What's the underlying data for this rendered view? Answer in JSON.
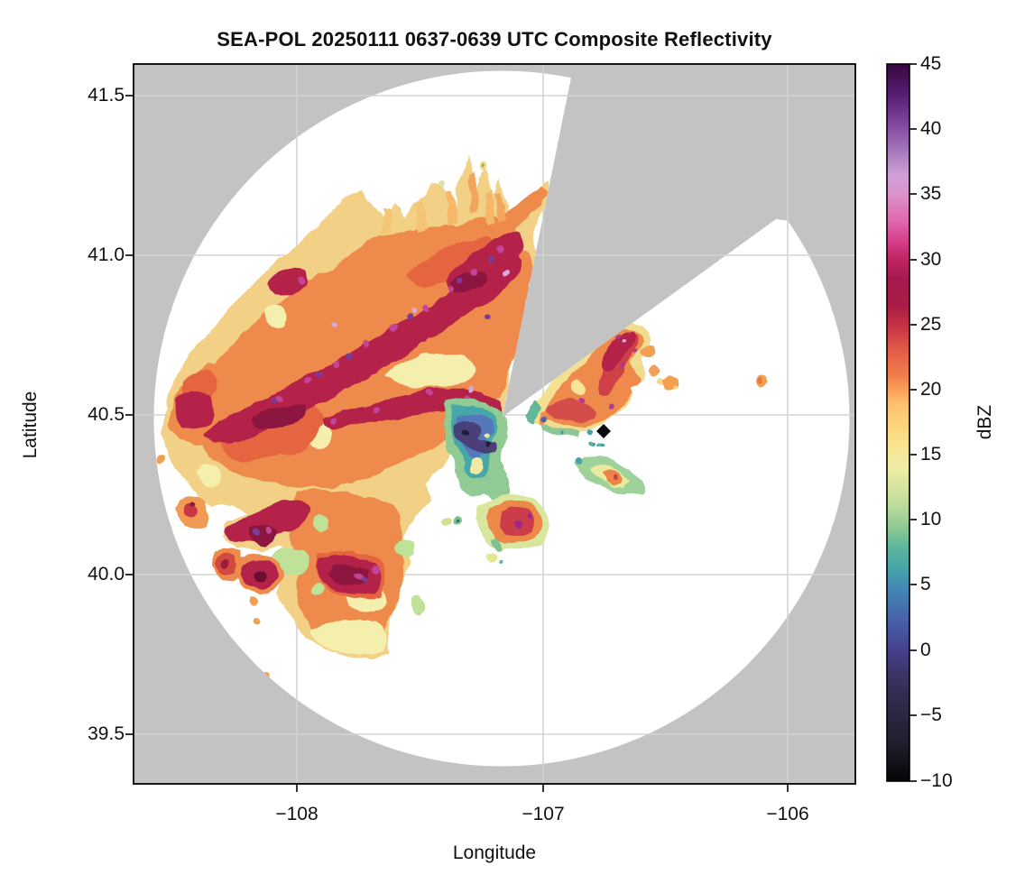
{
  "title": "SEA-POL 20250111 0637-0639 UTC Composite Reflectivity",
  "axes": {
    "xlabel": "Longitude",
    "ylabel": "Latitude",
    "x_ticks": [
      {
        "label": "−108",
        "value": -108
      },
      {
        "label": "−107",
        "value": -107
      },
      {
        "label": "−106",
        "value": -106
      }
    ],
    "y_ticks": [
      {
        "label": "41.5",
        "value": 41.5
      },
      {
        "label": "41.0",
        "value": 41.0
      },
      {
        "label": "40.5",
        "value": 40.5
      },
      {
        "label": "40.0",
        "value": 40.0
      },
      {
        "label": "39.5",
        "value": 39.5
      }
    ]
  },
  "colorbar": {
    "label": "dBZ",
    "min": -10,
    "max": 45,
    "tick_step": 5,
    "ticks": [
      {
        "label": "45",
        "value": 45
      },
      {
        "label": "40",
        "value": 40
      },
      {
        "label": "35",
        "value": 35
      },
      {
        "label": "30",
        "value": 30
      },
      {
        "label": "25",
        "value": 25
      },
      {
        "label": "20",
        "value": 20
      },
      {
        "label": "15",
        "value": 15
      },
      {
        "label": "10",
        "value": 10
      },
      {
        "label": "5",
        "value": 5
      },
      {
        "label": "0",
        "value": 0
      },
      {
        "label": "−5",
        "value": -5
      },
      {
        "label": "−10",
        "value": -10
      }
    ],
    "colormap_stops": [
      [
        45,
        "#36083e"
      ],
      [
        42.5,
        "#5a1f76"
      ],
      [
        40,
        "#8750a4"
      ],
      [
        38,
        "#ad7fc0"
      ],
      [
        36.5,
        "#cf9fd8"
      ],
      [
        35,
        "#da92ca"
      ],
      [
        33,
        "#e068ac"
      ],
      [
        31.5,
        "#d6418c"
      ],
      [
        30,
        "#c02462"
      ],
      [
        28.5,
        "#a51a50"
      ],
      [
        26.5,
        "#a81c45"
      ],
      [
        25,
        "#c63045"
      ],
      [
        23,
        "#e25c46"
      ],
      [
        21,
        "#f1814c"
      ],
      [
        20,
        "#f9a05a"
      ],
      [
        19,
        "#fcc06c"
      ],
      [
        17,
        "#fdd77f"
      ],
      [
        15.5,
        "#f7e695"
      ],
      [
        14,
        "#edeca6"
      ],
      [
        12.5,
        "#d6e59f"
      ],
      [
        11,
        "#b7da9a"
      ],
      [
        9.5,
        "#8fca93"
      ],
      [
        8,
        "#5fb69b"
      ],
      [
        6.5,
        "#49a7a7"
      ],
      [
        5,
        "#428cb4"
      ],
      [
        3.5,
        "#4573af"
      ],
      [
        2,
        "#485ba6"
      ],
      [
        0.5,
        "#464792"
      ],
      [
        0,
        "#444089"
      ],
      [
        -1.5,
        "#3d366c"
      ],
      [
        -3,
        "#352e55"
      ],
      [
        -5,
        "#2b2540"
      ],
      [
        -7,
        "#211e2e"
      ],
      [
        -8.5,
        "#15131a"
      ],
      [
        -10,
        "#030304"
      ]
    ]
  },
  "colors": {
    "background": "#ffffff",
    "no_data_gray": "#c3c3c3",
    "grid": "#d4d4d4",
    "axis": "#000000"
  },
  "chart_data": {
    "type": "heatmap",
    "title": "SEA-POL 20250111 0637-0639 UTC Composite Reflectivity",
    "xlabel": "Longitude",
    "ylabel": "Latitude",
    "xlim": [
      -108.67,
      -105.73
    ],
    "ylim": [
      39.42,
      41.59
    ],
    "x_ticks": [
      -108,
      -107,
      -106
    ],
    "y_ticks": [
      39.5,
      40.0,
      40.5,
      41.0,
      41.5
    ],
    "grid": true,
    "colorbar": {
      "label": "dBZ",
      "range": [
        -10,
        45
      ],
      "tick_step": 5
    },
    "radar": {
      "site": "SEA-POL",
      "date": "20250111",
      "time_utc": "0637-0639",
      "product": "Composite Reflectivity",
      "center_lonlat_approx": [
        -107.17,
        40.49
      ],
      "range_km_approx": 120,
      "blocked_sector_azimuth_deg_approx": [
        11,
        54
      ],
      "site_marker_lonlat_approx": [
        -106.74,
        40.45
      ]
    },
    "features": [
      {
        "name": "widespread stratiform echo W-NW of radar",
        "lon_range": [
          -108.57,
          -106.98
        ],
        "lat_range": [
          39.74,
          41.33
        ],
        "dbz_range": [
          15,
          38
        ],
        "structure": "WSW-ENE oriented embedded bands of 28-34 dBZ with isolated specks to 40 dBZ"
      },
      {
        "name": "weak-echo notch S of radar",
        "lon_range": [
          -107.42,
          -107.1
        ],
        "lat_range": [
          40.03,
          40.55
        ],
        "dbz_range": [
          -6,
          14
        ],
        "structure": "greens, blues and dark purples including near 0 dBZ core"
      },
      {
        "name": "echo area ENE of radar inside clear sector",
        "lon_range": [
          -107.08,
          -106.43
        ],
        "lat_range": [
          40.25,
          40.8
        ],
        "dbz_range": [
          12,
          34
        ]
      },
      {
        "name": "isolated cells SW of radar",
        "lon_range": [
          -108.52,
          -108.06
        ],
        "lat_range": [
          39.65,
          40.28
        ],
        "dbz_range": [
          18,
          36
        ]
      },
      {
        "name": "small echo cluster SE of radar",
        "lon_range": [
          -106.87,
          -106.57
        ],
        "lat_range": [
          40.33,
          40.42
        ],
        "dbz_range": [
          8,
          28
        ]
      },
      {
        "name": "small isolated echo E",
        "lon_range": [
          -106.13,
          -106.06
        ],
        "lat_range": [
          40.57,
          40.63
        ],
        "dbz_range": [
          20,
          26
        ]
      }
    ]
  }
}
